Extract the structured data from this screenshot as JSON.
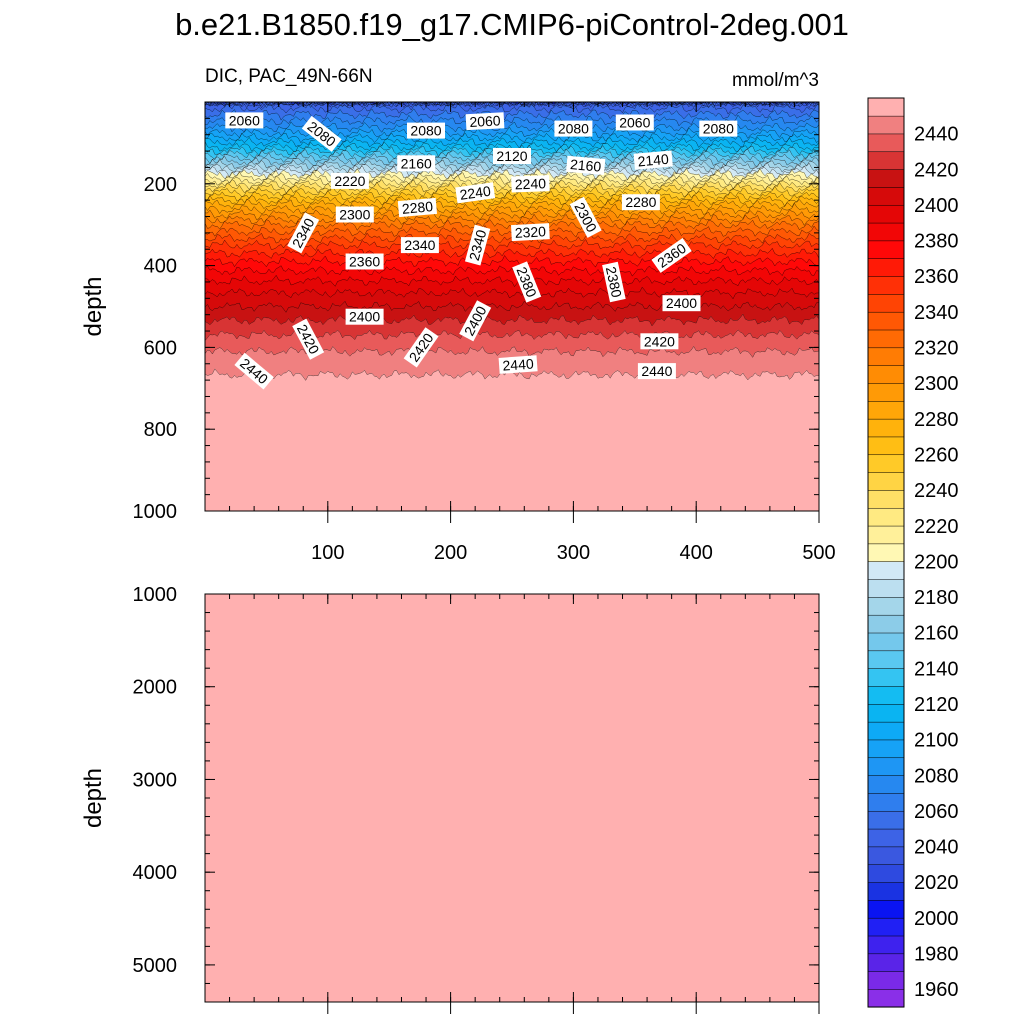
{
  "title": "b.e21.B1850.f19_g17.CMIP6-piControl-2deg.001",
  "chart_data": {
    "type": "contour",
    "variable_label": "DIC, PAC_49N-66N",
    "units_label": "mmol/m^3",
    "x": {
      "range": [
        0,
        500
      ],
      "ticks": [
        100,
        200,
        300,
        400,
        500
      ],
      "tick_labels": [
        "100",
        "200",
        "300",
        "400",
        "500"
      ],
      "minor_step": 20
    },
    "panels": [
      {
        "name": "upper",
        "ylabel": "depth",
        "ylim": [
          0,
          1000
        ],
        "yticks": [
          200,
          400,
          600,
          800,
          1000
        ],
        "ytick_labels": [
          "200",
          "400",
          "600",
          "800",
          "1000"
        ],
        "yminor_step": 40
      },
      {
        "name": "lower",
        "ylabel": "depth",
        "ylim": [
          1000,
          5400
        ],
        "yticks": [
          1000,
          2000,
          3000,
          4000,
          5000
        ],
        "ytick_labels": [
          "1000",
          "2000",
          "3000",
          "4000",
          "5000"
        ],
        "yminor_step": 200
      }
    ],
    "profile": {
      "depths": [
        0,
        30,
        70,
        110,
        150,
        180,
        210,
        250,
        300,
        350,
        400,
        450,
        500,
        550,
        600,
        640,
        680,
        700
      ],
      "values": [
        2040,
        2060,
        2085,
        2120,
        2165,
        2205,
        2240,
        2280,
        2320,
        2350,
        2375,
        2395,
        2410,
        2425,
        2438,
        2446,
        2452,
        2458
      ]
    },
    "deep_value": 2458,
    "contour_labels": [
      {
        "text": "2060",
        "x": 32,
        "y": 45,
        "angle": 0
      },
      {
        "text": "2080",
        "x": 95,
        "y": 78,
        "angle": 38
      },
      {
        "text": "2080",
        "x": 180,
        "y": 70,
        "angle": 0
      },
      {
        "text": "2060",
        "x": 228,
        "y": 47,
        "angle": -3
      },
      {
        "text": "2080",
        "x": 300,
        "y": 65,
        "angle": 0
      },
      {
        "text": "2060",
        "x": 350,
        "y": 50,
        "angle": 0
      },
      {
        "text": "2080",
        "x": 418,
        "y": 65,
        "angle": 0
      },
      {
        "text": "2160",
        "x": 172,
        "y": 150,
        "angle": 0
      },
      {
        "text": "2120",
        "x": 250,
        "y": 132,
        "angle": 0
      },
      {
        "text": "2160",
        "x": 310,
        "y": 155,
        "angle": 5
      },
      {
        "text": "2140",
        "x": 365,
        "y": 142,
        "angle": -5
      },
      {
        "text": "2220",
        "x": 118,
        "y": 193,
        "angle": 0
      },
      {
        "text": "2240",
        "x": 220,
        "y": 222,
        "angle": -8
      },
      {
        "text": "2240",
        "x": 265,
        "y": 200,
        "angle": -2
      },
      {
        "text": "2300",
        "x": 122,
        "y": 275,
        "angle": 0
      },
      {
        "text": "2280",
        "x": 173,
        "y": 258,
        "angle": -5
      },
      {
        "text": "2300",
        "x": 310,
        "y": 282,
        "angle": 62
      },
      {
        "text": "2280",
        "x": 355,
        "y": 245,
        "angle": 0
      },
      {
        "text": "2340",
        "x": 80,
        "y": 320,
        "angle": -62
      },
      {
        "text": "2340",
        "x": 175,
        "y": 350,
        "angle": 0
      },
      {
        "text": "2340",
        "x": 222,
        "y": 350,
        "angle": -75
      },
      {
        "text": "2320",
        "x": 265,
        "y": 318,
        "angle": -3
      },
      {
        "text": "2360",
        "x": 130,
        "y": 390,
        "angle": 0
      },
      {
        "text": "2380",
        "x": 262,
        "y": 440,
        "angle": 68
      },
      {
        "text": "2380",
        "x": 333,
        "y": 440,
        "angle": 78
      },
      {
        "text": "2360",
        "x": 380,
        "y": 375,
        "angle": -35
      },
      {
        "text": "2400",
        "x": 130,
        "y": 525,
        "angle": 0
      },
      {
        "text": "2400",
        "x": 220,
        "y": 535,
        "angle": -62
      },
      {
        "text": "2400",
        "x": 388,
        "y": 492,
        "angle": 0
      },
      {
        "text": "2420",
        "x": 84,
        "y": 580,
        "angle": 62
      },
      {
        "text": "2420",
        "x": 176,
        "y": 600,
        "angle": -55
      },
      {
        "text": "2420",
        "x": 370,
        "y": 585,
        "angle": 0
      },
      {
        "text": "2440",
        "x": 40,
        "y": 658,
        "angle": 40
      },
      {
        "text": "2440",
        "x": 255,
        "y": 642,
        "angle": -4
      },
      {
        "text": "2440",
        "x": 368,
        "y": 658,
        "angle": 0
      }
    ],
    "colorbar": {
      "levels": [
        1960,
        1970,
        1980,
        1990,
        2000,
        2010,
        2020,
        2030,
        2040,
        2050,
        2060,
        2070,
        2080,
        2090,
        2100,
        2110,
        2120,
        2130,
        2140,
        2150,
        2160,
        2170,
        2180,
        2190,
        2200,
        2210,
        2220,
        2230,
        2240,
        2250,
        2260,
        2270,
        2280,
        2290,
        2300,
        2310,
        2320,
        2330,
        2340,
        2350,
        2360,
        2370,
        2380,
        2390,
        2400,
        2410,
        2420,
        2430,
        2440,
        2450
      ],
      "labels": [
        1960,
        1980,
        2000,
        2020,
        2040,
        2060,
        2080,
        2100,
        2120,
        2140,
        2160,
        2180,
        2200,
        2220,
        2240,
        2260,
        2280,
        2300,
        2320,
        2340,
        2360,
        2380,
        2400,
        2420,
        2440
      ],
      "colors": [
        "#8a2fe8",
        "#7a2ae8",
        "#5a24e8",
        "#3e22ee",
        "#2020f4",
        "#0a14f2",
        "#1a33e2",
        "#2e4ae0",
        "#3a58e0",
        "#3d63e6",
        "#3a6ee8",
        "#2f7eee",
        "#2688f0",
        "#1e96f4",
        "#16a2f6",
        "#0eaaf6",
        "#0ab4f2",
        "#14bcf2",
        "#34c4f2",
        "#5ac8f0",
        "#74c8ec",
        "#8ccce8",
        "#a4d6ea",
        "#bcdff0",
        "#d2e9f6",
        "#fff8b4",
        "#fff09a",
        "#ffea82",
        "#ffe066",
        "#ffd444",
        "#ffca28",
        "#ffbe14",
        "#ffb20c",
        "#ffa608",
        "#ff9a06",
        "#ff8c04",
        "#ff7c04",
        "#ff6a04",
        "#ff5804",
        "#ff4404",
        "#ff3006",
        "#ff1a06",
        "#ff0808",
        "#f20606",
        "#e40606",
        "#d60a0a",
        "#c81212",
        "#d83434",
        "#e85a5a",
        "#f08080",
        "#ffb0b0"
      ]
    }
  }
}
